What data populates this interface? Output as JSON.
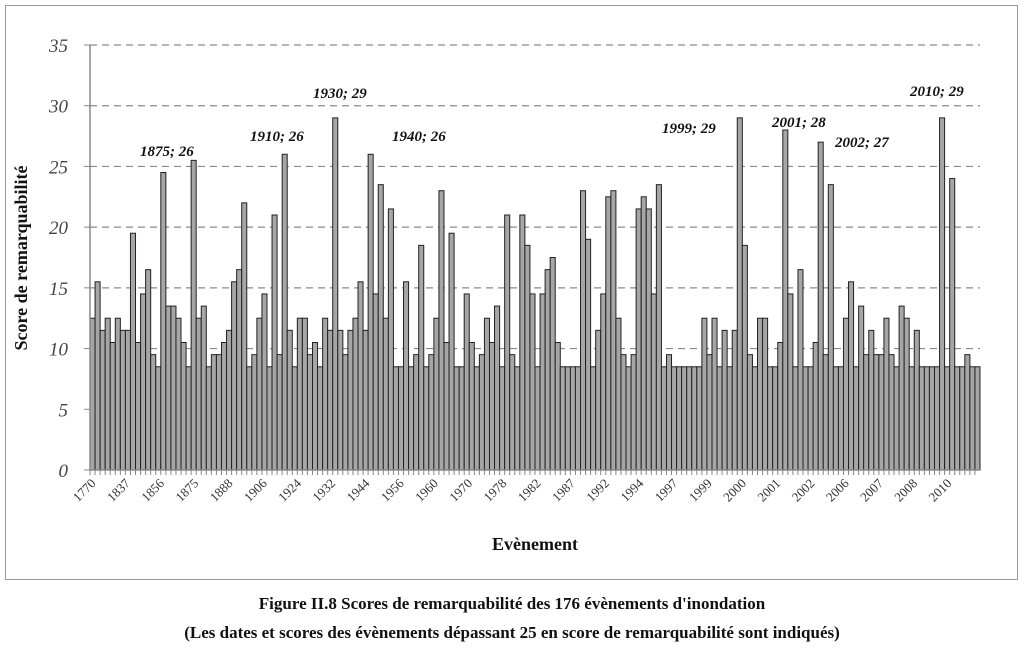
{
  "chart_data": {
    "type": "bar",
    "title": "",
    "xlabel": "Evènement",
    "ylabel": "Score de remarquabilité",
    "ylim": [
      0,
      35
    ],
    "yticks": [
      0,
      5,
      10,
      15,
      20,
      25,
      30,
      35
    ],
    "grid": "horizontal dashed",
    "bar_color": "#a6a6a6",
    "xtick_labels": [
      "1770",
      "1837",
      "1856",
      "1875",
      "1888",
      "1906",
      "1924",
      "1932",
      "1944",
      "1956",
      "1960",
      "1970",
      "1978",
      "1982",
      "1987",
      "1992",
      "1994",
      "1997",
      "1999",
      "2000",
      "2001",
      "2002",
      "2006",
      "2007",
      "2008",
      "2010"
    ],
    "values": [
      12.5,
      15.5,
      11.5,
      12.5,
      10.5,
      12.5,
      11.5,
      11.5,
      19.5,
      10.5,
      14.5,
      16.5,
      9.5,
      8.5,
      24.5,
      13.5,
      13.5,
      12.5,
      10.5,
      8.5,
      25.5,
      12.5,
      13.5,
      8.5,
      9.5,
      9.5,
      10.5,
      11.5,
      15.5,
      16.5,
      22,
      8.5,
      9.5,
      12.5,
      14.5,
      8.5,
      21,
      9.5,
      26,
      11.5,
      8.5,
      12.5,
      12.5,
      9.5,
      10.5,
      8.5,
      12.5,
      11.5,
      29,
      11.5,
      9.5,
      11.5,
      12.5,
      15.5,
      11.5,
      26,
      14.5,
      23.5,
      12.5,
      21.5,
      8.5,
      8.5,
      15.5,
      8.5,
      9.5,
      18.5,
      8.5,
      9.5,
      12.5,
      23,
      10.5,
      19.5,
      8.5,
      8.5,
      14.5,
      10.5,
      8.5,
      9.5,
      12.5,
      10.5,
      13.5,
      8.5,
      21,
      9.5,
      8.5,
      21,
      18.5,
      14.5,
      8.5,
      14.5,
      16.5,
      17.5,
      10.5,
      8.5,
      8.5,
      8.5,
      8.5,
      23,
      19,
      8.5,
      11.5,
      14.5,
      22.5,
      23,
      12.5,
      9.5,
      8.5,
      9.5,
      21.5,
      22.5,
      21.5,
      14.5,
      23.5,
      8.5,
      9.5,
      8.5,
      8.5,
      8.5,
      8.5,
      8.5,
      8.5,
      12.5,
      9.5,
      12.5,
      8.5,
      11.5,
      8.5,
      11.5,
      29,
      18.5,
      9.5,
      8.5,
      12.5,
      12.5,
      8.5,
      8.5,
      10.5,
      28,
      14.5,
      8.5,
      16.5,
      8.5,
      8.5,
      10.5,
      27,
      9.5,
      23.5,
      8.5,
      8.5,
      12.5,
      15.5,
      8.5,
      13.5,
      9.5,
      11.5,
      9.5,
      9.5,
      12.5,
      9.5,
      8.5,
      13.5,
      12.5,
      8.5,
      11.5,
      8.5,
      8.5,
      8.5,
      8.5,
      29,
      8.5,
      24,
      8.5,
      8.5,
      9.5,
      8.5,
      8.5
    ],
    "annotations": [
      "1875; 26",
      "1910; 26",
      "1930; 29",
      "1940; 26",
      "1999; 29",
      "2001; 28",
      "2002; 27",
      "2010; 29"
    ]
  },
  "caption": {
    "line1": "Figure II.8 Scores de remarquabilité des 176 évènements d'inondation",
    "line2": "(Les dates et scores des évènements dépassant 25 en score de remarquabilité sont indiqués)"
  }
}
